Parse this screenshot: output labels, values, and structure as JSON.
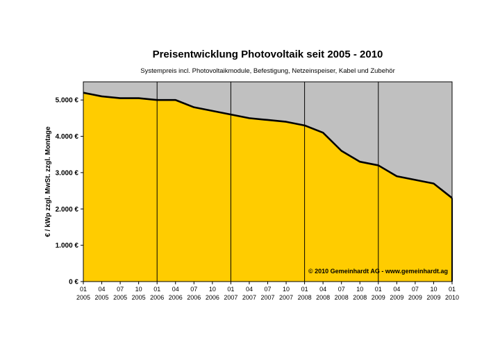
{
  "chart_data": {
    "type": "area",
    "title": "Preisentwicklung Photovoltaik seit 2005 - 2010",
    "subtitle": "Systempreis incl. Photovoltaikmodule, Befestigung, Netzeinspeiser, Kabel und Zubehör",
    "ylabel": "€ / kWp zzgl. MwSt. zzgl. Montage",
    "xlabel": "",
    "ylim": [
      0,
      5500
    ],
    "yticks": [
      0,
      1000,
      2000,
      3000,
      4000,
      5000
    ],
    "ytick_labels": [
      "0 €",
      "1.000 €",
      "2.000 €",
      "3.000 €",
      "4.000 €",
      "5.000 €"
    ],
    "x_months": [
      "01",
      "04",
      "07",
      "10",
      "01",
      "04",
      "07",
      "10",
      "01",
      "04",
      "07",
      "10",
      "01",
      "04",
      "07",
      "10",
      "01",
      "04",
      "07",
      "10",
      "01"
    ],
    "x_years": [
      "2005",
      "2005",
      "2005",
      "2005",
      "2006",
      "2006",
      "2006",
      "2006",
      "2007",
      "2007",
      "2007",
      "2007",
      "2008",
      "2008",
      "2008",
      "2008",
      "2009",
      "2009",
      "2009",
      "2009",
      "2010"
    ],
    "year_lines_at": [
      "01/2006",
      "01/2007",
      "01/2008",
      "01/2009"
    ],
    "series": [
      {
        "values": [
          5200,
          5100,
          5050,
          5050,
          5000,
          5000,
          4800,
          4700,
          4600,
          4500,
          4450,
          4400,
          4300,
          4100,
          3600,
          3300,
          3200,
          2900,
          2800,
          2700,
          2300
        ],
        "fill_color": "#ffcc00",
        "line_color": "#000000"
      }
    ],
    "plot_background": "#c0c0c0",
    "annotation": "© 2010 Gemeinhardt AG - www.gemeinhardt.ag",
    "legend": "none",
    "grid": false
  }
}
